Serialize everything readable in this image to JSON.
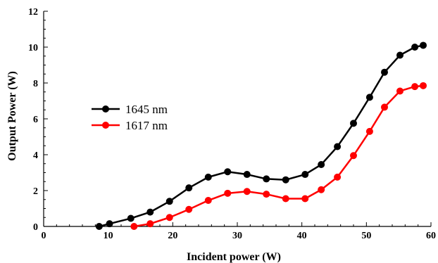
{
  "chart_data": {
    "type": "line",
    "title": "",
    "xlabel": "Incident power (W)",
    "ylabel": "Output Power (W)",
    "xlim": [
      0,
      60
    ],
    "ylim": [
      0,
      12
    ],
    "x_ticks": [
      0,
      10,
      20,
      30,
      40,
      50,
      60
    ],
    "y_ticks": [
      0,
      2,
      4,
      6,
      8,
      10,
      12
    ],
    "grid": false,
    "legend": "left",
    "series": [
      {
        "name": "1645 nm",
        "color": "#000000",
        "x": [
          8.6,
          10.2,
          13.5,
          16.5,
          19.5,
          22.5,
          25.5,
          28.5,
          31.5,
          34.5,
          37.5,
          40.5,
          43.0,
          45.5,
          48.0,
          50.5,
          52.8,
          55.2,
          57.5,
          58.8
        ],
        "y": [
          0.0,
          0.15,
          0.45,
          0.8,
          1.4,
          2.15,
          2.75,
          3.05,
          2.9,
          2.65,
          2.6,
          2.9,
          3.45,
          4.45,
          5.75,
          7.2,
          8.6,
          9.55,
          10.0,
          10.1
        ]
      },
      {
        "name": "1617 nm",
        "color": "#ff0000",
        "x": [
          14.0,
          16.5,
          19.5,
          22.5,
          25.5,
          28.5,
          31.5,
          34.5,
          37.5,
          40.5,
          43.0,
          45.5,
          48.0,
          50.5,
          52.8,
          55.2,
          57.5,
          58.8
        ],
        "y": [
          0.0,
          0.15,
          0.5,
          0.95,
          1.45,
          1.85,
          1.95,
          1.8,
          1.55,
          1.55,
          2.05,
          2.75,
          3.95,
          5.3,
          6.65,
          7.55,
          7.8,
          7.85
        ]
      }
    ]
  }
}
